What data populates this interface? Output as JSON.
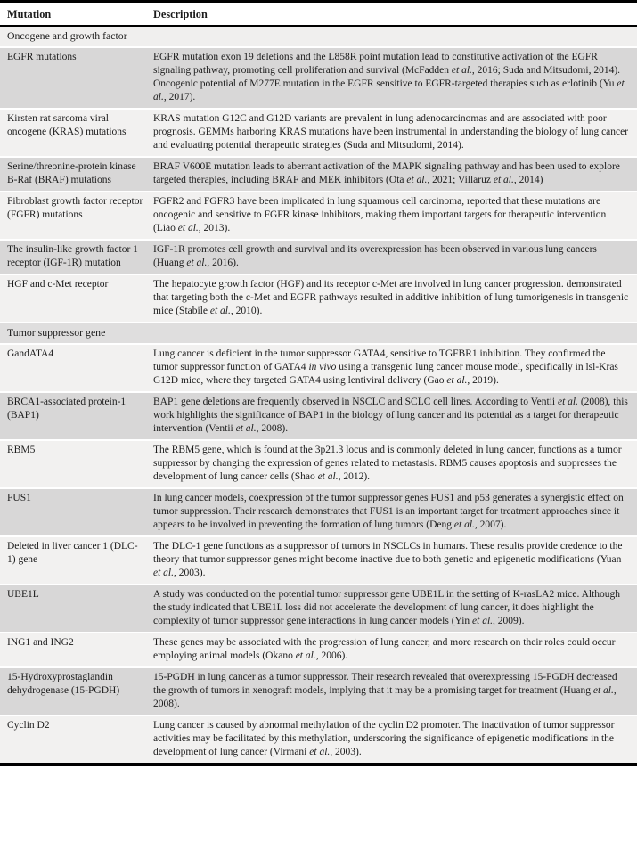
{
  "colors": {
    "row_dark": "#d8d7d7",
    "row_light": "#f2f1f0",
    "section_oncogene_bg": "#f0efee",
    "section_tumor_bg": "#dfdede",
    "rule": "#000000"
  },
  "table": {
    "columns": [
      "Mutation",
      "Description"
    ],
    "sections": [
      {
        "header": "Oncogene and growth factor",
        "rows": [
          {
            "mutation": "EGFR mutations",
            "description": "EGFR mutation exon 19 deletions and the L858R point mutation lead to constitutive activation of the EGFR signaling pathway, promoting cell proliferation and survival (McFadden *et al.*, 2016; Suda and Mitsudomi, 2014). Oncogenic potential of M277E mutation in the EGFR sensitive to EGFR-targeted therapies such as erlotinib (Yu *et al.*, 2017)."
          },
          {
            "mutation": "Kirsten rat sarcoma viral oncogene (KRAS) mutations",
            "description": "KRAS mutation G12C and G12D variants are prevalent in lung adenocarcinomas and are associated with poor prognosis. GEMMs harboring KRAS mutations have been instrumental in understanding the biology of lung cancer and evaluating potential therapeutic strategies (Suda and Mitsudomi, 2014)."
          },
          {
            "mutation": "Serine/threonine-protein kinase B-Raf (BRAF) mutations",
            "description": "BRAF V600E mutation leads to aberrant activation of the MAPK signaling pathway and has been used to explore targeted therapies, including BRAF and MEK inhibitors (Ota *et al.*, 2021; Villaruz *et al.*, 2014)"
          },
          {
            "mutation": "Fibroblast growth factor receptor (FGFR) mutations",
            "description": "FGFR2 and FGFR3 have been implicated in lung squamous cell carcinoma, reported that these mutations are oncogenic and sensitive to FGFR kinase inhibitors, making them important targets for therapeutic intervention (Liao *et al.*, 2013)."
          },
          {
            "mutation": "The insulin-like growth factor 1 receptor (IGF-1R) mutation",
            "description": "IGF-1R promotes cell growth and survival and its overexpression has been observed in various lung cancers (Huang *et al.*, 2016)."
          },
          {
            "mutation": "HGF and c-Met receptor",
            "description": "The hepatocyte growth factor (HGF) and its receptor c-Met are involved in lung cancer progression. demonstrated that targeting both the c-Met and EGFR pathways resulted in additive inhibition of lung tumorigenesis in transgenic mice (Stabile *et al.*, 2010)."
          }
        ]
      },
      {
        "header": "Tumor suppressor gene",
        "rows": [
          {
            "mutation": "GandATA4",
            "description": "Lung cancer is deficient in the tumor suppressor GATA4, sensitive to TGFBR1 inhibition. They confirmed the tumor suppressor function of GATA4 *in vivo* using a transgenic lung cancer mouse model, specifically in lsl-Kras G12D mice, where they targeted GATA4 using lentiviral delivery (Gao *et al.*, 2019)."
          },
          {
            "mutation": "BRCA1-associated protein-1 (BAP1)",
            "description": "BAP1 gene deletions are frequently observed in NSCLC and SCLC cell lines. According to Ventii *et al.* (2008), this work highlights the significance of BAP1 in the biology of lung cancer and its potential as a target for therapeutic intervention (Ventii *et al.*, 2008)."
          },
          {
            "mutation": "RBM5",
            "description": "The RBM5 gene, which is found at the 3p21.3 locus and is commonly deleted in lung cancer, functions as a tumor suppressor by changing the expression of genes related to metastasis. RBM5 causes apoptosis and suppresses the development of lung cancer cells (Shao *et al.*, 2012)."
          },
          {
            "mutation": "FUS1",
            "description": "In lung cancer models, coexpression of the tumor suppressor genes FUS1 and p53 generates a synergistic effect on tumor suppression. Their research demonstrates that FUS1 is an important target for treatment approaches since it appears to be involved in preventing the formation of lung tumors (Deng *et al.*, 2007)."
          },
          {
            "mutation": "Deleted in liver cancer 1 (DLC-1) gene",
            "description": "The DLC-1 gene functions as a suppressor of tumors in NSCLCs in humans. These results provide credence to the theory that tumor suppressor genes might become inactive due to both genetic and epigenetic modifications (Yuan *et al.*, 2003)."
          },
          {
            "mutation": "UBE1L",
            "description": "A study was conducted on the potential tumor suppressor gene UBE1L in the setting of K-rasLA2 mice. Although the study indicated that UBE1L loss did not accelerate the development of lung cancer, it does highlight the complexity of tumor suppressor gene interactions in lung cancer models (Yin *et al.*, 2009)."
          },
          {
            "mutation": "ING1 and ING2",
            "description": "These genes may be associated with the progression of lung cancer, and more research on their roles could occur employing animal models (Okano *et al.*, 2006)."
          },
          {
            "mutation": "15-Hydroxyprostaglandin dehydrogenase (15-PGDH)",
            "description": "15-PGDH in lung cancer as a tumor suppressor. Their research revealed that overexpressing 15-PGDH decreased the growth of tumors in xenograft models, implying that it may be a promising target for treatment (Huang *et al.*, 2008)."
          },
          {
            "mutation": "Cyclin D2",
            "description": "Lung cancer is caused by abnormal methylation of the cyclin D2 promoter. The inactivation of tumor suppressor activities may be facilitated by this methylation, underscoring the significance of epigenetic modifications in the development of lung cancer (Virmani *et al.*, 2003)."
          }
        ]
      }
    ]
  }
}
